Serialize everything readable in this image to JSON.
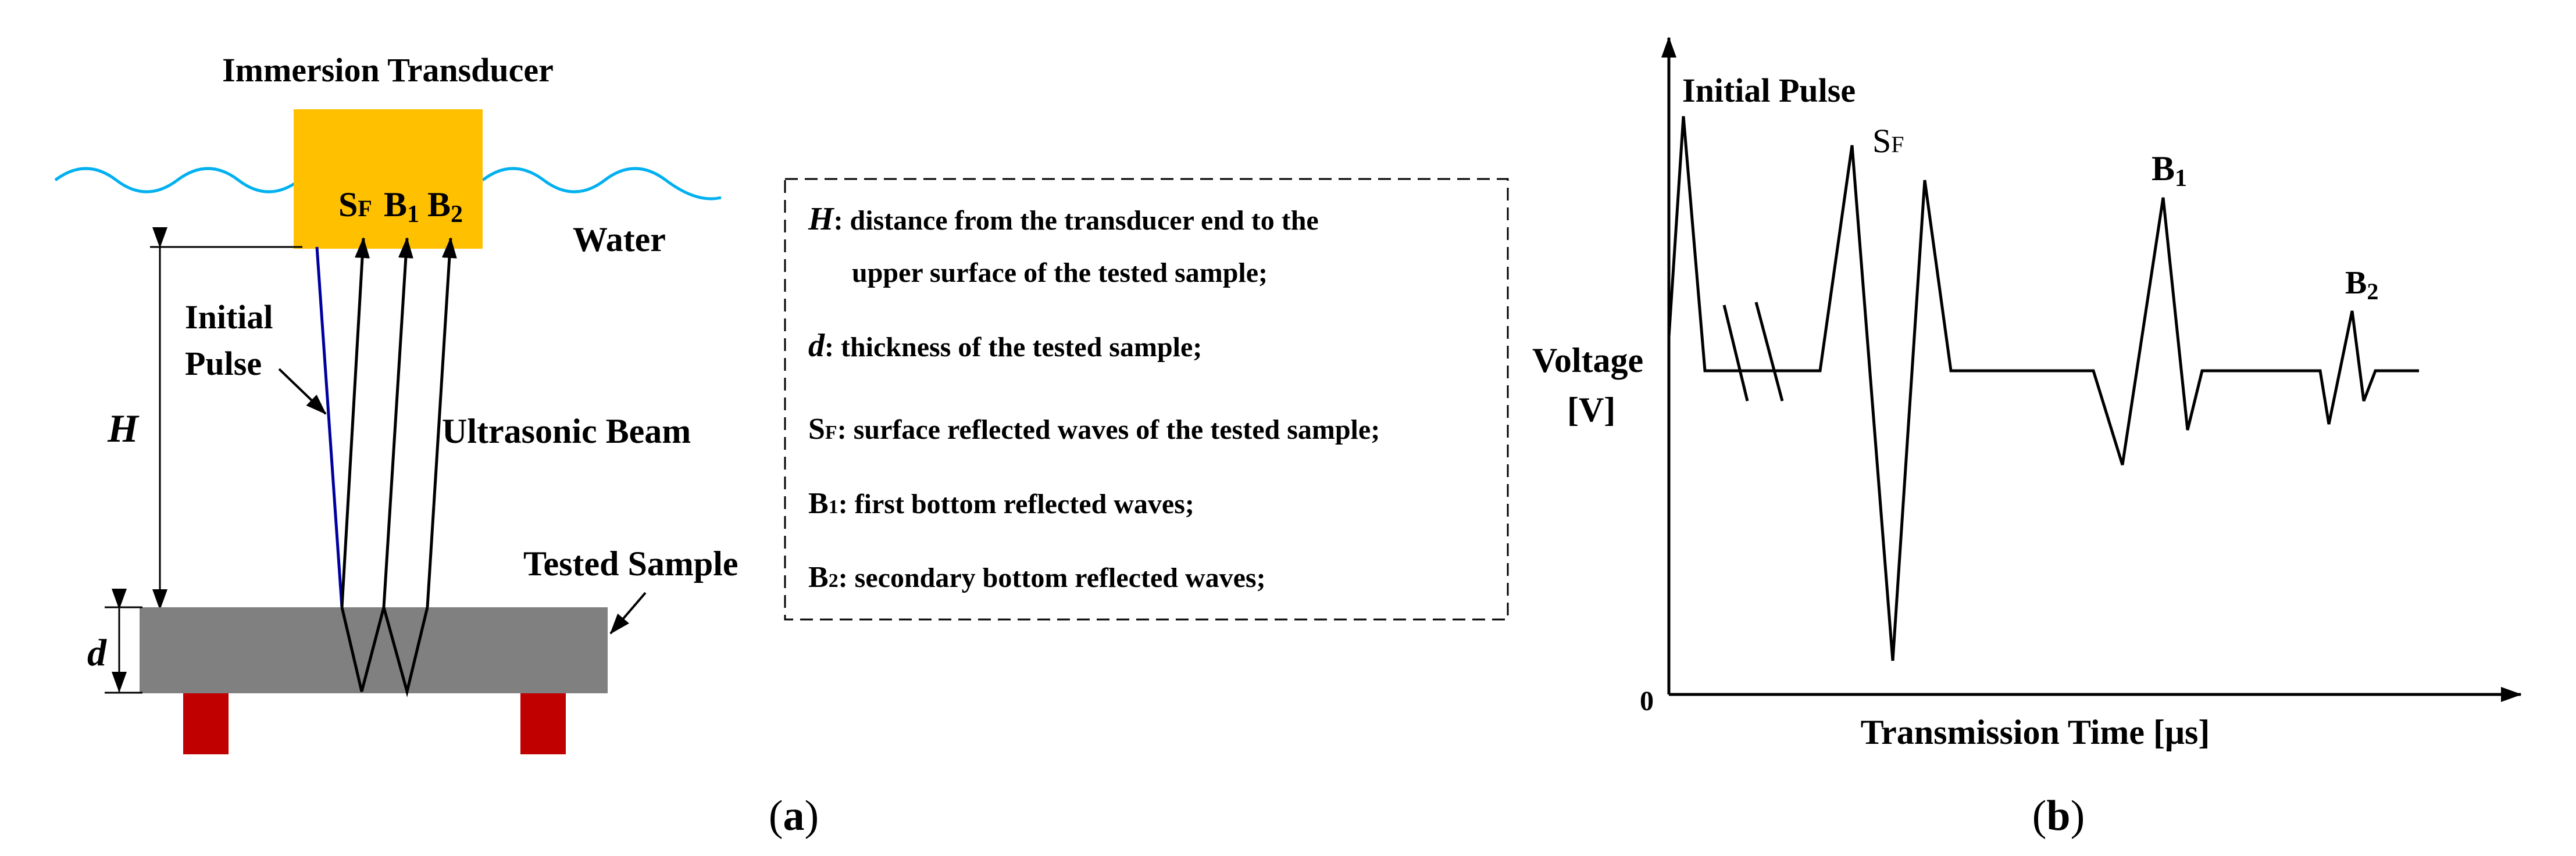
{
  "panel_a": {
    "transducer_label": "Immersion Transducer",
    "water_label": "Water",
    "sf_label_main": "S",
    "sf_label_sub": "F",
    "b1_label_main": "B",
    "b1_label_sub": "1",
    "b2_label_main": "B",
    "b2_label_sub": "2",
    "initial_pulse_line1": "Initial",
    "initial_pulse_line2": "Pulse",
    "ultrasonic_beam_label": "Ultrasonic Beam",
    "h_label": "H",
    "d_label": "d",
    "tested_sample_label": "Tested Sample",
    "caption_open": "(",
    "caption_letter": "a",
    "caption_close": ")"
  },
  "legend": {
    "items": [
      {
        "key": "H",
        "sub": "",
        "text": ":  distance from the transducer end to the",
        "text2": "upper surface of the tested sample;"
      },
      {
        "key": "d",
        "sub": "",
        "text": ":   thickness of the tested sample;",
        "text2": ""
      },
      {
        "key": "S",
        "sub": "F",
        "text": ":  surface reflected waves of the tested sample;",
        "text2": ""
      },
      {
        "key": "B",
        "sub": "1",
        "text": ":  first bottom reflected waves;",
        "text2": ""
      },
      {
        "key": "B",
        "sub": "2",
        "text": ":  secondary bottom reflected waves;",
        "text2": ""
      }
    ]
  },
  "panel_b": {
    "initial_pulse_label": "Initial Pulse",
    "sf_label_main": "S",
    "sf_label_sub": "F",
    "b1_label_main": "B",
    "b1_label_sub": "1",
    "b2_label_main": "B",
    "b2_label_sub": "2",
    "ylabel_line1": "Voltage",
    "ylabel_line2": "[V]",
    "origin_label": "0",
    "xlabel": "Transmission Time [μs]",
    "caption_open": "(",
    "caption_letter": "b",
    "caption_close": ")"
  },
  "colors": {
    "transducer": "#FFC000",
    "water": "#00B0F0",
    "sample": "#808080",
    "supports": "#C00000",
    "initial_pulse_ray": "#0000A0"
  }
}
